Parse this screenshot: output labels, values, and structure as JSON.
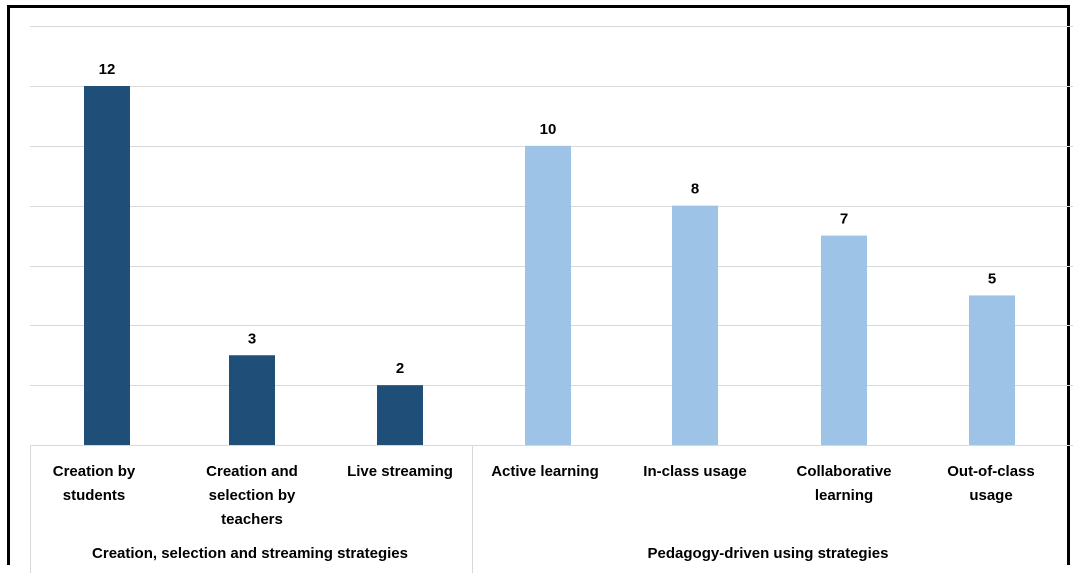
{
  "chart_data": {
    "type": "bar",
    "title": "",
    "xlabel": "",
    "ylabel": "",
    "ylim": [
      0,
      12
    ],
    "grid": true,
    "legend": "none",
    "categories": [
      "Creation by students",
      "Creation and selection by teachers",
      "Live streaming",
      "Active learning",
      "In-class usage",
      "Collaborative learning",
      "Out-of-class usage"
    ],
    "values": [
      12,
      3,
      2,
      10,
      8,
      7,
      5
    ],
    "data_labels": [
      "12",
      "3",
      "2",
      "10",
      "8",
      "7",
      "5"
    ],
    "groups": [
      {
        "label": "Creation, selection and streaming strategies",
        "categories": [
          "Creation by students",
          "Creation and selection by teachers",
          "Live streaming"
        ],
        "color": "#1f4e79"
      },
      {
        "label": "Pedagogy-driven using strategies",
        "categories": [
          "Active learning",
          "In-class usage",
          "Collaborative learning",
          "Out-of-class usage"
        ],
        "color": "#9dc3e6"
      }
    ],
    "colors": {
      "group1_bar": "#1f4e79",
      "group2_bar": "#9dc3e6",
      "gridline": "#d9d9d9"
    }
  }
}
